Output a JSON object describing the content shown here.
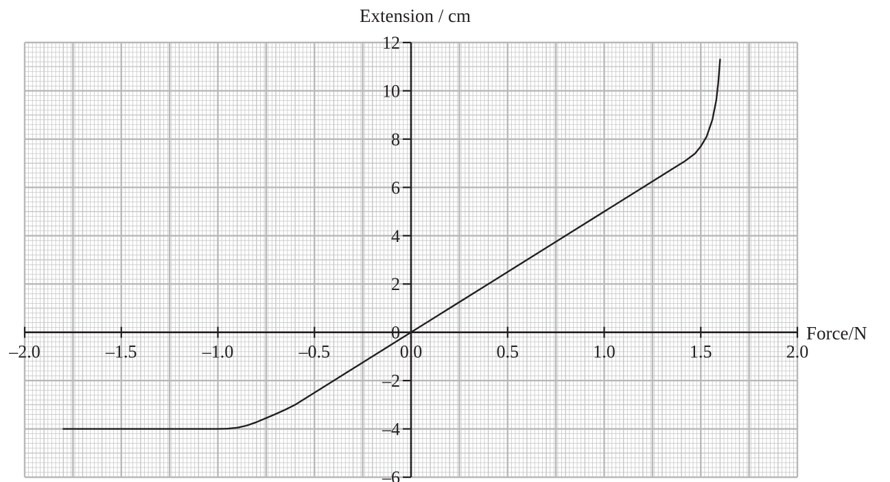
{
  "chart_data": {
    "type": "line",
    "title": "",
    "xlabel": "Force/N",
    "ylabel": "Extension / cm",
    "xlim": [
      -2.0,
      2.0
    ],
    "ylim": [
      -6,
      12
    ],
    "grid": true,
    "x_ticks": [
      -2.0,
      -1.5,
      -1.0,
      -0.5,
      0.0,
      0.5,
      1.0,
      1.5,
      2.0
    ],
    "x_tick_labels": [
      "–2.0",
      "–1.5",
      "–1.0",
      "–0.5",
      "0.0",
      "0.5",
      "1.0",
      "1.5",
      "2.0"
    ],
    "y_ticks": [
      -6,
      -4,
      -2,
      0,
      2,
      4,
      6,
      8,
      10,
      12
    ],
    "y_tick_labels": [
      "–6",
      "–4",
      "–2",
      "0",
      "2",
      "4",
      "6",
      "8",
      "10",
      "12"
    ],
    "series": [
      {
        "x": [
          -1.8,
          -1.6,
          -1.4,
          -1.2,
          -1.0,
          -0.95,
          -0.9,
          -0.85,
          -0.8,
          -0.75,
          -0.7,
          -0.65,
          -0.6,
          -0.5,
          -0.4,
          -0.3,
          -0.2,
          -0.1,
          0.0,
          0.2,
          0.4,
          0.6,
          0.8,
          1.0,
          1.2,
          1.35,
          1.42,
          1.47,
          1.5,
          1.53,
          1.56,
          1.58,
          1.59,
          1.6
        ],
        "y": [
          -4.0,
          -4.0,
          -4.0,
          -4.0,
          -4.0,
          -3.99,
          -3.95,
          -3.86,
          -3.72,
          -3.55,
          -3.38,
          -3.2,
          -3.0,
          -2.5,
          -2.0,
          -1.5,
          -1.0,
          -0.5,
          0.0,
          1.0,
          2.0,
          3.0,
          4.0,
          5.0,
          6.0,
          6.75,
          7.1,
          7.4,
          7.7,
          8.1,
          8.8,
          9.6,
          10.3,
          11.3
        ]
      }
    ]
  }
}
